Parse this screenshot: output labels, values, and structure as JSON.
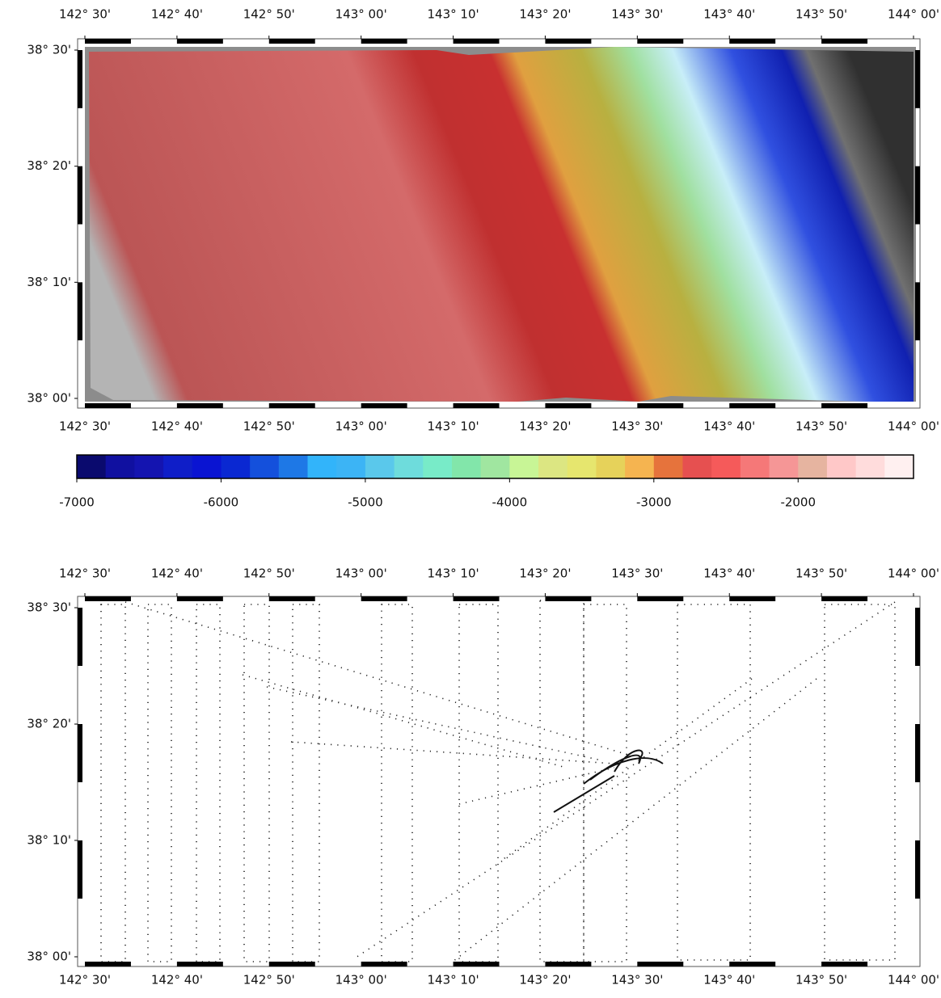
{
  "top_map": {
    "lonlim": [
      142.5,
      144.0
    ],
    "latlim": [
      38.0,
      38.5
    ],
    "lon_ticks": [
      {
        "value": 142.5,
        "label": "142° 30'"
      },
      {
        "value": 142.6667,
        "label": "142° 40'"
      },
      {
        "value": 142.8333,
        "label": "142° 50'"
      },
      {
        "value": 143.0,
        "label": "143° 00'"
      },
      {
        "value": 143.1667,
        "label": "143° 10'"
      },
      {
        "value": 143.3333,
        "label": "143° 20'"
      },
      {
        "value": 143.5,
        "label": "143° 30'"
      },
      {
        "value": 143.6667,
        "label": "143° 40'"
      },
      {
        "value": 143.8333,
        "label": "143° 50'"
      },
      {
        "value": 144.0,
        "label": "144° 00'"
      }
    ],
    "lat_ticks": [
      {
        "value": 38.5,
        "label": "38° 30'"
      },
      {
        "value": 38.3333,
        "label": "38° 20'"
      },
      {
        "value": 38.1667,
        "label": "38° 10'"
      },
      {
        "value": 38.0,
        "label": "38° 00'"
      }
    ]
  },
  "colorbar": {
    "range": [
      -7000,
      -1200
    ],
    "ticks": [
      -7000,
      -6000,
      -5000,
      -4000,
      -3000,
      -2000
    ],
    "colors": [
      "#0a0a6e",
      "#1010a0",
      "#1414b0",
      "#0f1ec8",
      "#0a14d2",
      "#0a28d2",
      "#1450dc",
      "#1e78e6",
      "#32b4fa",
      "#3cb4f5",
      "#5ac8eb",
      "#6edcdc",
      "#78ebc8",
      "#82e6aa",
      "#a0e6a0",
      "#c8f596",
      "#dce682",
      "#e6e66e",
      "#e6d25a",
      "#f5b450",
      "#e6733c",
      "#e65050",
      "#f55a5a",
      "#f57878",
      "#f59696",
      "#e6b4a0",
      "#ffc8c8",
      "#ffdcdc",
      "#fff0f0"
    ]
  },
  "bottom_map": {
    "lonlim": [
      142.5,
      144.0
    ],
    "latlim": [
      38.0,
      38.5
    ],
    "lon_ticks": [
      {
        "value": 142.5,
        "label": "142° 30'"
      },
      {
        "value": 142.6667,
        "label": "142° 40'"
      },
      {
        "value": 142.8333,
        "label": "142° 50'"
      },
      {
        "value": 143.0,
        "label": "143° 00'"
      },
      {
        "value": 143.1667,
        "label": "143° 10'"
      },
      {
        "value": 143.3333,
        "label": "143° 20'"
      },
      {
        "value": 143.5,
        "label": "143° 30'"
      },
      {
        "value": 143.6667,
        "label": "143° 40'"
      },
      {
        "value": 143.8333,
        "label": "143° 50'"
      },
      {
        "value": 144.0,
        "label": "144° 00'"
      }
    ],
    "lat_ticks": [
      {
        "value": 38.5,
        "label": "38° 30'"
      },
      {
        "value": 38.3333,
        "label": "38° 20'"
      },
      {
        "value": 38.1667,
        "label": "38° 10'"
      },
      {
        "value": 38.0,
        "label": "38° 00'"
      }
    ]
  }
}
